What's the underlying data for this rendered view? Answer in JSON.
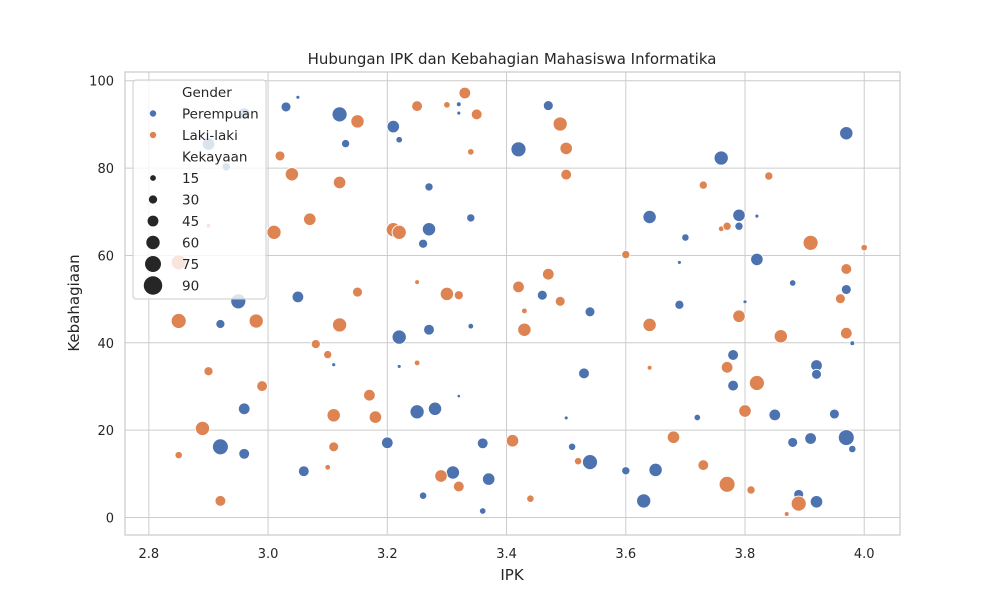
{
  "chart_data": {
    "type": "scatter",
    "title": "Hubungan IPK dan Kebahagian Mahasiswa Informatika",
    "xlabel": "IPK",
    "ylabel": "Kebahagiaan",
    "xlim": [
      2.76,
      4.06
    ],
    "ylim": [
      -4,
      102
    ],
    "xticks": [
      2.8,
      3.0,
      3.2,
      3.4,
      3.6,
      3.8,
      4.0
    ],
    "xtick_labels": [
      "2.8",
      "3.0",
      "3.2",
      "3.4",
      "3.6",
      "3.8",
      "4.0"
    ],
    "yticks": [
      0,
      20,
      40,
      60,
      80,
      100
    ],
    "ytick_labels": [
      "0",
      "20",
      "40",
      "60",
      "80",
      "100"
    ],
    "grid": true,
    "hue": "Gender",
    "size": "Kekayaan",
    "series": [
      {
        "name": "Perempuan",
        "color": "#4c72b0",
        "points": [
          [
            2.92,
            44.3,
            35
          ],
          [
            3.05,
            96.2,
            5
          ],
          [
            3.03,
            94,
            40
          ],
          [
            3.12,
            92.3,
            70
          ],
          [
            3.13,
            85.6,
            30
          ],
          [
            3.21,
            89.5,
            55
          ],
          [
            3.22,
            86.5,
            20
          ],
          [
            3.32,
            92.6,
            5
          ],
          [
            3.32,
            94.6,
            10
          ],
          [
            3.47,
            94.3,
            40
          ],
          [
            3.42,
            84.3,
            70
          ],
          [
            3.27,
            75.7,
            30
          ],
          [
            3.34,
            68.6,
            30
          ],
          [
            3.27,
            66,
            60
          ],
          [
            3.26,
            62.7,
            35
          ],
          [
            3.05,
            50.5,
            50
          ],
          [
            2.95,
            49.5,
            70
          ],
          [
            2.93,
            80.3,
            30
          ],
          [
            2.9,
            85.5,
            55
          ],
          [
            2.96,
            92.5,
            50
          ],
          [
            3.22,
            41.3,
            65
          ],
          [
            3.27,
            43,
            45
          ],
          [
            3.34,
            43.8,
            15
          ],
          [
            3.11,
            35,
            5
          ],
          [
            3.22,
            34.6,
            5
          ],
          [
            3.32,
            27.8,
            2
          ],
          [
            2.96,
            24.9,
            50
          ],
          [
            3.25,
            24.2,
            65
          ],
          [
            3.28,
            24.9,
            60
          ],
          [
            2.92,
            16.2,
            75
          ],
          [
            2.96,
            14.6,
            45
          ],
          [
            3.06,
            10.6,
            45
          ],
          [
            3.2,
            17.1,
            50
          ],
          [
            3.31,
            10.3,
            60
          ],
          [
            3.36,
            17,
            45
          ],
          [
            3.37,
            8.8,
            55
          ],
          [
            3.26,
            5,
            25
          ],
          [
            3.36,
            1.5,
            20
          ],
          [
            3.46,
            50.9,
            40
          ],
          [
            3.54,
            47.1,
            40
          ],
          [
            3.53,
            33,
            45
          ],
          [
            3.5,
            22.8,
            5
          ],
          [
            3.51,
            16.2,
            25
          ],
          [
            3.54,
            12.7,
            70
          ],
          [
            3.64,
            68.8,
            60
          ],
          [
            3.7,
            64.1,
            25
          ],
          [
            3.69,
            58.4,
            5
          ],
          [
            3.69,
            48.7,
            35
          ],
          [
            3.6,
            10.7,
            30
          ],
          [
            3.63,
            3.8,
            65
          ],
          [
            3.65,
            10.9,
            60
          ],
          [
            3.72,
            22.9,
            20
          ],
          [
            3.76,
            82.3,
            65
          ],
          [
            3.79,
            69.2,
            55
          ],
          [
            3.79,
            66.7,
            30
          ],
          [
            3.82,
            69,
            5
          ],
          [
            3.82,
            59.1,
            55
          ],
          [
            3.8,
            49.4,
            5
          ],
          [
            3.78,
            37.2,
            45
          ],
          [
            3.78,
            30.2,
            45
          ],
          [
            3.85,
            23.5,
            50
          ],
          [
            3.88,
            53.7,
            20
          ],
          [
            3.88,
            17.2,
            40
          ],
          [
            3.91,
            18.1,
            50
          ],
          [
            3.92,
            34.8,
            50
          ],
          [
            3.92,
            32.8,
            40
          ],
          [
            3.92,
            3.6,
            55
          ],
          [
            3.89,
            5.3,
            40
          ],
          [
            3.89,
            3.2,
            20
          ],
          [
            3.97,
            88,
            60
          ],
          [
            3.97,
            52.2,
            40
          ],
          [
            3.97,
            41.5,
            5
          ],
          [
            3.98,
            39.9,
            10
          ],
          [
            3.95,
            23.7,
            40
          ],
          [
            3.97,
            18.3,
            75
          ],
          [
            3.98,
            15.7,
            25
          ]
        ]
      },
      {
        "name": "Laki-laki",
        "color": "#dd8452",
        "points": [
          [
            2.85,
            45,
            70
          ],
          [
            2.85,
            58.4,
            70
          ],
          [
            2.85,
            14.3,
            25
          ],
          [
            2.89,
            20.4,
            65
          ],
          [
            2.9,
            33.5,
            35
          ],
          [
            2.9,
            66.8,
            10
          ],
          [
            2.92,
            3.8,
            45
          ],
          [
            2.98,
            45,
            65
          ],
          [
            2.99,
            30.1,
            45
          ],
          [
            3.01,
            65.3,
            65
          ],
          [
            3.02,
            82.8,
            40
          ],
          [
            3.04,
            78.6,
            60
          ],
          [
            3.07,
            68.3,
            55
          ],
          [
            3.08,
            39.7,
            35
          ],
          [
            3.1,
            37.3,
            30
          ],
          [
            3.1,
            11.5,
            15
          ],
          [
            3.11,
            23.4,
            60
          ],
          [
            3.11,
            16.2,
            40
          ],
          [
            3.12,
            44.1,
            65
          ],
          [
            3.12,
            76.7,
            55
          ],
          [
            3.15,
            90.7,
            60
          ],
          [
            3.15,
            51.6,
            40
          ],
          [
            3.17,
            28,
            50
          ],
          [
            3.18,
            23,
            55
          ],
          [
            3.21,
            65.9,
            65
          ],
          [
            3.22,
            65.3,
            65
          ],
          [
            3.25,
            94.2,
            45
          ],
          [
            3.25,
            53.9,
            10
          ],
          [
            3.25,
            35.4,
            15
          ],
          [
            3.29,
            9.5,
            55
          ],
          [
            3.3,
            94.5,
            20
          ],
          [
            3.3,
            51.2,
            60
          ],
          [
            3.32,
            50.9,
            35
          ],
          [
            3.32,
            7.1,
            45
          ],
          [
            3.33,
            97.2,
            50
          ],
          [
            3.34,
            83.7,
            20
          ],
          [
            3.35,
            92.3,
            45
          ],
          [
            3.41,
            17.6,
            55
          ],
          [
            3.42,
            52.8,
            50
          ],
          [
            3.43,
            43,
            60
          ],
          [
            3.43,
            47.3,
            15
          ],
          [
            3.44,
            4.3,
            25
          ],
          [
            3.47,
            55.7,
            50
          ],
          [
            3.49,
            90.1,
            65
          ],
          [
            3.49,
            49.5,
            40
          ],
          [
            3.5,
            84.5,
            55
          ],
          [
            3.5,
            78.5,
            45
          ],
          [
            3.52,
            12.9,
            25
          ],
          [
            3.6,
            60.2,
            30
          ],
          [
            3.64,
            44.1,
            60
          ],
          [
            3.64,
            34.3,
            10
          ],
          [
            3.68,
            18.4,
            55
          ],
          [
            3.73,
            76.1,
            30
          ],
          [
            3.73,
            12,
            45
          ],
          [
            3.76,
            66.1,
            15
          ],
          [
            3.77,
            66.7,
            30
          ],
          [
            3.77,
            34.4,
            50
          ],
          [
            3.77,
            7.6,
            75
          ],
          [
            3.79,
            46.1,
            55
          ],
          [
            3.8,
            24.4,
            55
          ],
          [
            3.81,
            6.3,
            30
          ],
          [
            3.82,
            30.8,
            70
          ],
          [
            3.84,
            78.2,
            30
          ],
          [
            3.86,
            41.5,
            60
          ],
          [
            3.87,
            0.8,
            10
          ],
          [
            3.89,
            3.2,
            70
          ],
          [
            3.91,
            62.9,
            70
          ],
          [
            3.96,
            50.1,
            40
          ],
          [
            3.97,
            56.9,
            45
          ],
          [
            3.97,
            42.2,
            50
          ],
          [
            4.0,
            61.8,
            20
          ]
        ]
      }
    ],
    "legend": {
      "position": "upper-left",
      "hue_title": "Gender",
      "hue_entries": [
        "Perempuan",
        "Laki-laki"
      ],
      "size_title": "Kekayaan",
      "size_entries": [
        15,
        30,
        45,
        60,
        75,
        90
      ]
    }
  }
}
